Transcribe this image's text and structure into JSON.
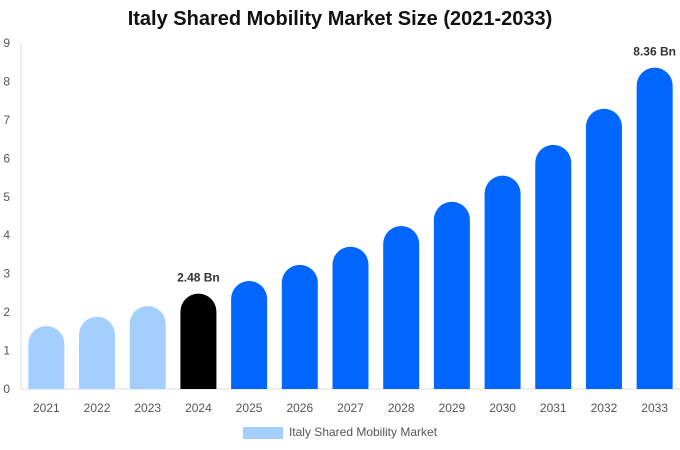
{
  "chart_data": {
    "type": "bar",
    "title": "Italy Shared Mobility Market Size (2021-2033)",
    "categories": [
      "2021",
      "2022",
      "2023",
      "2024",
      "2025",
      "2026",
      "2027",
      "2028",
      "2029",
      "2030",
      "2031",
      "2032",
      "2033"
    ],
    "series": [
      {
        "name": "Italy Shared Mobility Market",
        "values": [
          1.64,
          1.88,
          2.16,
          2.48,
          2.81,
          3.23,
          3.7,
          4.24,
          4.87,
          5.55,
          6.35,
          7.29,
          8.36
        ]
      }
    ],
    "data_labels": {
      "2024": "2.48 Bn",
      "2033": "8.36 Bn"
    },
    "ylim": [
      0,
      9
    ],
    "yticks": [
      0,
      1,
      2,
      3,
      4,
      5,
      6,
      7,
      8,
      9
    ],
    "xlabel": "",
    "ylabel": "",
    "grid": false,
    "legend_position": "bottom",
    "colors": {
      "historical": "#a3cfff",
      "current": "#000000",
      "forecast": "#0066ff"
    }
  }
}
